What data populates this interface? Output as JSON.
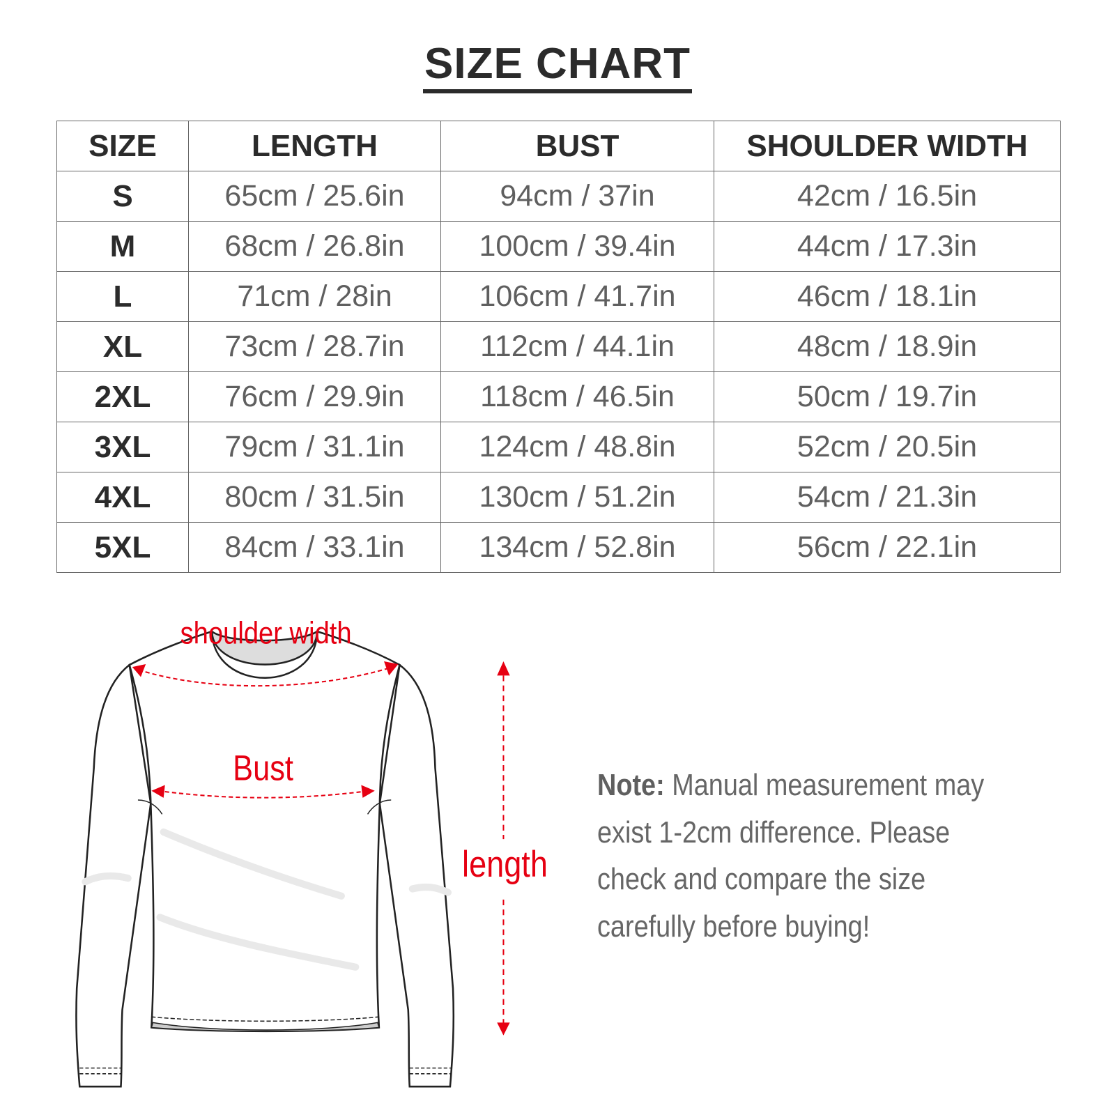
{
  "title": "SIZE CHART",
  "table": {
    "headers": [
      "SIZE",
      "LENGTH",
      "BUST",
      "SHOULDER WIDTH"
    ],
    "rows": [
      [
        "S",
        "65cm / 25.6in",
        "94cm / 37in",
        "42cm / 16.5in"
      ],
      [
        "M",
        "68cm / 26.8in",
        "100cm / 39.4in",
        "44cm / 17.3in"
      ],
      [
        "L",
        "71cm / 28in",
        "106cm / 41.7in",
        "46cm / 18.1in"
      ],
      [
        "XL",
        "73cm / 28.7in",
        "112cm / 44.1in",
        "48cm / 18.9in"
      ],
      [
        "2XL",
        "76cm / 29.9in",
        "118cm / 46.5in",
        "50cm / 19.7in"
      ],
      [
        "3XL",
        "79cm / 31.1in",
        "124cm / 48.8in",
        "52cm / 20.5in"
      ],
      [
        "4XL",
        "80cm / 31.5in",
        "130cm / 51.2in",
        "54cm / 21.3in"
      ],
      [
        "5XL",
        "84cm / 33.1in",
        "134cm / 52.8in",
        "56cm / 22.1in"
      ]
    ]
  },
  "diagram": {
    "shoulder_label": "shoulder width",
    "bust_label": "Bust",
    "length_label": "length",
    "accent_color": "#e60012"
  },
  "note": {
    "label": "Note:",
    "lines": [
      "Manual measurement may",
      "exist 1-2cm difference. Please",
      "check and compare the size",
      "carefully before buying!"
    ]
  }
}
